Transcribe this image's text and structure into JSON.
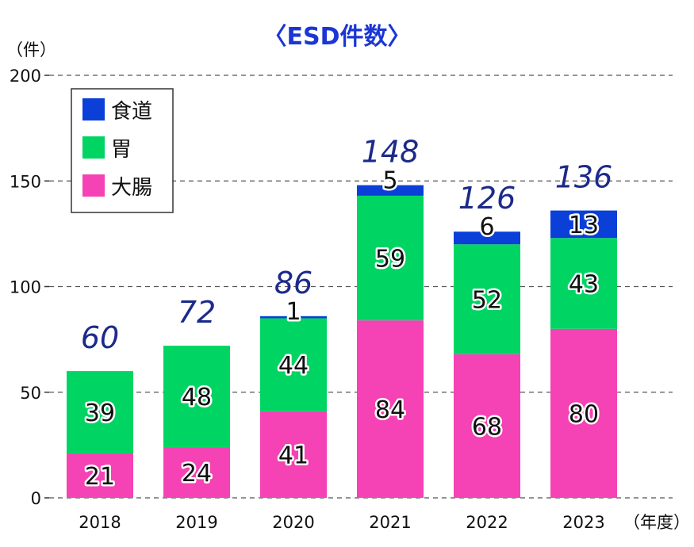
{
  "chart_data": {
    "type": "bar",
    "stacked": true,
    "title": "〈ESD件数〉",
    "ylabel": "（件）",
    "xlabel": "（年度）",
    "ylim": [
      0,
      200
    ],
    "yticks": [
      0,
      50,
      100,
      150,
      200
    ],
    "grid": true,
    "legend_position": "top-left",
    "categories": [
      "2018",
      "2019",
      "2020",
      "2021",
      "2022",
      "2023"
    ],
    "series": [
      {
        "name": "大腸",
        "color": "#f542b4",
        "values": [
          21,
          24,
          41,
          84,
          68,
          80
        ]
      },
      {
        "name": "胃",
        "color": "#00d563",
        "values": [
          39,
          48,
          44,
          59,
          52,
          43
        ]
      },
      {
        "name": "食道",
        "color": "#0a3fd8",
        "values": [
          0,
          0,
          1,
          5,
          6,
          13
        ]
      }
    ],
    "legend_order": [
      "食道",
      "胃",
      "大腸"
    ],
    "totals": [
      60,
      72,
      86,
      148,
      126,
      136
    ],
    "total_color": "#1b2a8a"
  }
}
